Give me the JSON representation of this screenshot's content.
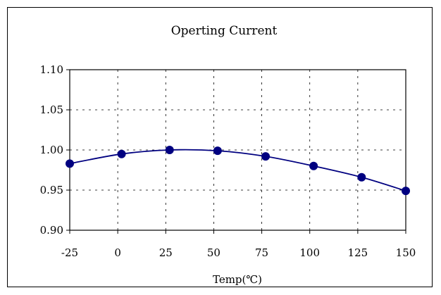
{
  "chart_data": {
    "type": "line",
    "title": "Operting Current",
    "xlabel": "Temp(℃)",
    "ylabel": "",
    "x_ticks": [
      "-25",
      "0",
      "25",
      "50",
      "75",
      "100",
      "125",
      "150"
    ],
    "x_tick_values": [
      -25,
      0,
      25,
      50,
      75,
      100,
      125,
      150
    ],
    "y_ticks": [
      "0.90",
      "0.95",
      "1.00",
      "1.05",
      "1.10"
    ],
    "y_tick_values": [
      0.9,
      0.95,
      1.0,
      1.05,
      1.1
    ],
    "xlim": [
      -25,
      150
    ],
    "ylim": [
      0.9,
      1.1
    ],
    "grid": true,
    "legend": "none",
    "series": [
      {
        "x": [
          -25,
          2,
          27,
          52,
          77,
          102,
          127,
          150
        ],
        "y": [
          0.983,
          0.995,
          1.0,
          0.999,
          0.992,
          0.98,
          0.966,
          0.949
        ]
      }
    ],
    "colors": {
      "line": "#000080",
      "marker": "#000080",
      "grid": "#000000"
    }
  }
}
